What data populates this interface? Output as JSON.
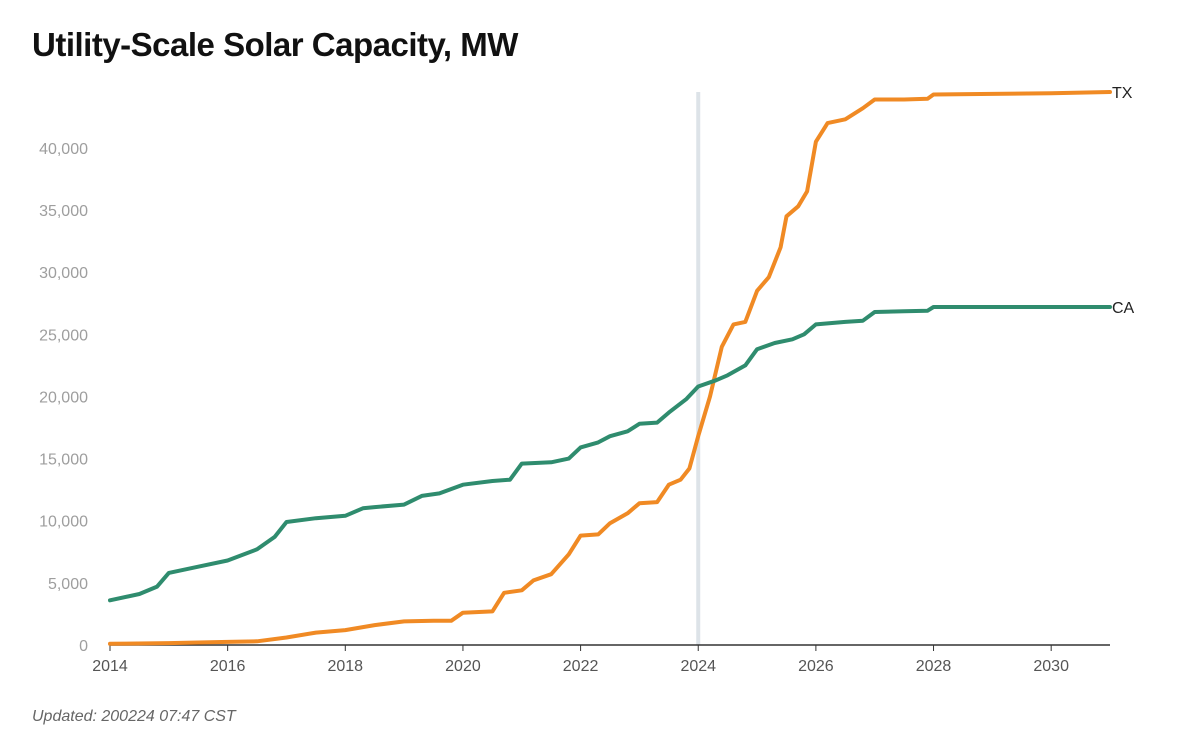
{
  "chart_data": {
    "type": "line",
    "title": "Utility-Scale Solar Capacity, MW",
    "xlabel": "",
    "ylabel": "",
    "xlim": [
      2014,
      2031
    ],
    "ylim": [
      0,
      44500
    ],
    "x_ticks": [
      2014,
      2016,
      2018,
      2020,
      2022,
      2024,
      2026,
      2028,
      2030
    ],
    "y_ticks": [
      0,
      5000,
      10000,
      15000,
      20000,
      25000,
      30000,
      35000,
      40000
    ],
    "y_tick_labels": [
      "0",
      "5,000",
      "10,000",
      "15,000",
      "20,000",
      "25,000",
      "30,000",
      "35,000",
      "40,000"
    ],
    "reference_line_x": 2024,
    "grid": false,
    "series": [
      {
        "name": "TX",
        "color": "#f08a24",
        "points": [
          [
            2014.0,
            100
          ],
          [
            2015.0,
            150
          ],
          [
            2016.0,
            250
          ],
          [
            2016.5,
            300
          ],
          [
            2017.0,
            600
          ],
          [
            2017.5,
            1000
          ],
          [
            2018.0,
            1200
          ],
          [
            2018.5,
            1600
          ],
          [
            2019.0,
            1900
          ],
          [
            2019.5,
            1950
          ],
          [
            2019.8,
            1950
          ],
          [
            2020.0,
            2600
          ],
          [
            2020.5,
            2700
          ],
          [
            2020.7,
            4200
          ],
          [
            2021.0,
            4400
          ],
          [
            2021.2,
            5200
          ],
          [
            2021.5,
            5700
          ],
          [
            2021.8,
            7300
          ],
          [
            2022.0,
            8800
          ],
          [
            2022.3,
            8900
          ],
          [
            2022.5,
            9800
          ],
          [
            2022.8,
            10600
          ],
          [
            2023.0,
            11400
          ],
          [
            2023.3,
            11500
          ],
          [
            2023.5,
            12900
          ],
          [
            2023.7,
            13300
          ],
          [
            2023.85,
            14200
          ],
          [
            2024.0,
            16800
          ],
          [
            2024.2,
            20000
          ],
          [
            2024.4,
            24000
          ],
          [
            2024.6,
            25800
          ],
          [
            2024.8,
            26000
          ],
          [
            2025.0,
            28500
          ],
          [
            2025.2,
            29600
          ],
          [
            2025.4,
            32000
          ],
          [
            2025.5,
            34500
          ],
          [
            2025.7,
            35300
          ],
          [
            2025.85,
            36500
          ],
          [
            2026.0,
            40500
          ],
          [
            2026.2,
            42000
          ],
          [
            2026.5,
            42300
          ],
          [
            2026.8,
            43200
          ],
          [
            2027.0,
            43900
          ],
          [
            2027.5,
            43900
          ],
          [
            2027.9,
            43950
          ],
          [
            2028.0,
            44300
          ],
          [
            2029.0,
            44350
          ],
          [
            2030.0,
            44400
          ],
          [
            2031.0,
            44500
          ]
        ]
      },
      {
        "name": "CA",
        "color": "#2f8c6e",
        "points": [
          [
            2014.0,
            3600
          ],
          [
            2014.5,
            4100
          ],
          [
            2014.8,
            4700
          ],
          [
            2015.0,
            5800
          ],
          [
            2015.5,
            6300
          ],
          [
            2016.0,
            6800
          ],
          [
            2016.5,
            7700
          ],
          [
            2016.8,
            8700
          ],
          [
            2017.0,
            9900
          ],
          [
            2017.5,
            10200
          ],
          [
            2018.0,
            10400
          ],
          [
            2018.3,
            11000
          ],
          [
            2018.5,
            11100
          ],
          [
            2019.0,
            11300
          ],
          [
            2019.3,
            12000
          ],
          [
            2019.6,
            12200
          ],
          [
            2020.0,
            12900
          ],
          [
            2020.5,
            13200
          ],
          [
            2020.8,
            13300
          ],
          [
            2021.0,
            14600
          ],
          [
            2021.5,
            14700
          ],
          [
            2021.8,
            15000
          ],
          [
            2022.0,
            15900
          ],
          [
            2022.3,
            16300
          ],
          [
            2022.5,
            16800
          ],
          [
            2022.8,
            17200
          ],
          [
            2023.0,
            17800
          ],
          [
            2023.3,
            17900
          ],
          [
            2023.5,
            18700
          ],
          [
            2023.8,
            19800
          ],
          [
            2024.0,
            20800
          ],
          [
            2024.3,
            21300
          ],
          [
            2024.5,
            21700
          ],
          [
            2024.8,
            22500
          ],
          [
            2025.0,
            23800
          ],
          [
            2025.3,
            24300
          ],
          [
            2025.6,
            24600
          ],
          [
            2025.8,
            25000
          ],
          [
            2026.0,
            25800
          ],
          [
            2026.5,
            26000
          ],
          [
            2026.8,
            26100
          ],
          [
            2027.0,
            26800
          ],
          [
            2027.5,
            26850
          ],
          [
            2027.9,
            26900
          ],
          [
            2028.0,
            27200
          ],
          [
            2029.0,
            27200
          ],
          [
            2030.0,
            27200
          ],
          [
            2031.0,
            27200
          ]
        ]
      }
    ]
  },
  "footer": {
    "updated": "Updated: 200224 07:47 CST"
  }
}
